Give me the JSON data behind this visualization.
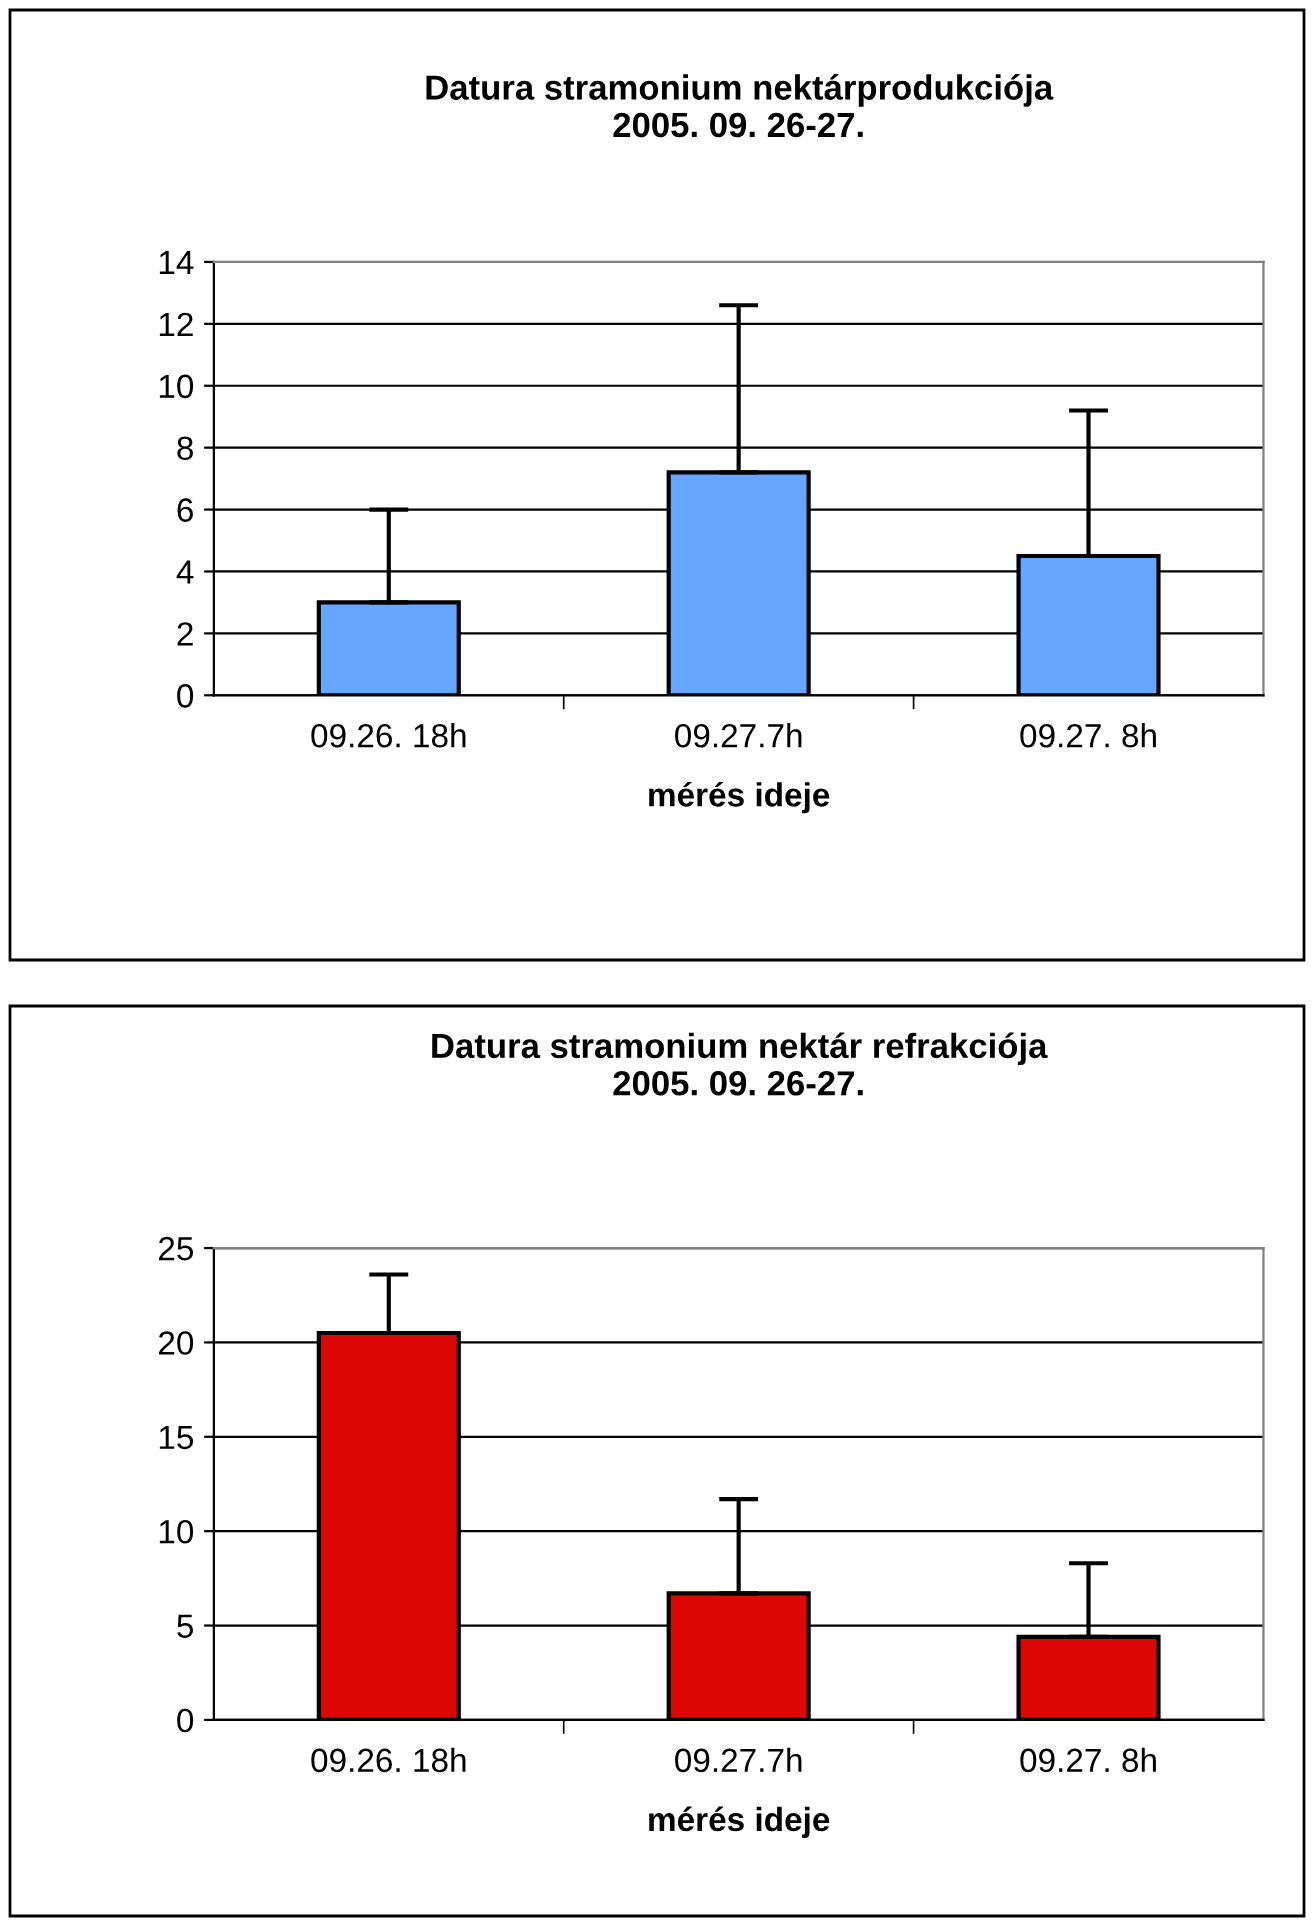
{
  "chart_data": [
    {
      "type": "bar",
      "title": "Datura stramonium nektárprodukciója\n2005. 09. 26-27.",
      "xlabel": "mérés ideje",
      "categories": [
        "09.26. 18h",
        "09.27.7h",
        "09.27. 8h"
      ],
      "values": [
        3.0,
        7.2,
        4.5
      ],
      "errors": [
        [
          3.0,
          6.0
        ],
        [
          7.2,
          12.6
        ],
        [
          4.5,
          9.2
        ]
      ],
      "color": "#66a6ff",
      "ylim": [
        0,
        14
      ],
      "yticks": [
        0,
        2,
        4,
        6,
        8,
        10,
        12,
        14
      ],
      "grid": "y",
      "legend": false
    },
    {
      "type": "bar",
      "title": "Datura stramonium nektár refrakciója\n2005. 09. 26-27.",
      "xlabel": "mérés ideje",
      "categories": [
        "09.26. 18h",
        "09.27.7h",
        "09.27. 8h"
      ],
      "values": [
        20.5,
        6.7,
        4.4
      ],
      "errors": [
        [
          20.5,
          23.6
        ],
        [
          6.7,
          11.7
        ],
        [
          4.4,
          8.3
        ]
      ],
      "color": "#dd0806",
      "ylim": [
        0,
        25
      ],
      "yticks": [
        0,
        5,
        10,
        15,
        20,
        25
      ],
      "grid": "y",
      "legend": false
    }
  ]
}
